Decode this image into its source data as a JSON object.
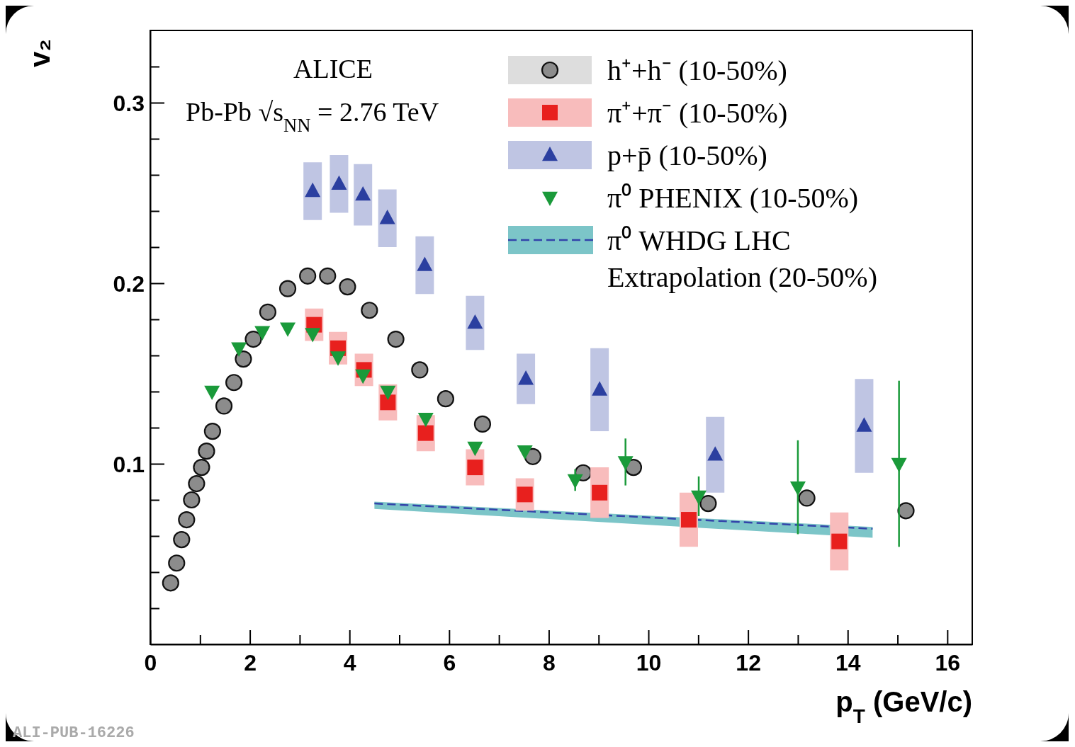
{
  "chart_data": {
    "type": "scatter",
    "xlabel": "p$_{T}$ (GeV/c)",
    "ylabel": "v₂",
    "xlim": [
      0,
      16.5
    ],
    "ylim": [
      0,
      0.34
    ],
    "xticks": [
      0,
      {
        "value": 1,
        "label": null
      },
      2,
      {
        "value": 3,
        "label": null
      },
      4,
      {
        "value": 5,
        "label": null
      },
      6,
      {
        "value": 7,
        "label": null
      },
      8,
      {
        "value": 9,
        "label": null
      },
      10,
      {
        "value": 11,
        "label": null
      },
      12,
      {
        "value": 13,
        "label": null
      },
      14,
      {
        "value": 15,
        "label": null
      },
      16
    ],
    "yticks": [
      {
        "value": 0.02,
        "label": null
      },
      {
        "value": 0.04,
        "label": null
      },
      {
        "value": 0.06,
        "label": null
      },
      {
        "value": 0.08,
        "label": null
      },
      {
        "value": 0.1,
        "label": "0.1"
      },
      {
        "value": 0.12,
        "label": null
      },
      {
        "value": 0.14,
        "label": null
      },
      {
        "value": 0.16,
        "label": null
      },
      {
        "value": 0.18,
        "label": null
      },
      {
        "value": 0.2,
        "label": "0.2"
      },
      {
        "value": 0.22,
        "label": null
      },
      {
        "value": 0.24,
        "label": null
      },
      {
        "value": 0.26,
        "label": null
      },
      {
        "value": 0.28,
        "label": null
      },
      {
        "value": 0.3,
        "label": "0.3"
      },
      {
        "value": 0.32,
        "label": null
      }
    ],
    "legend": "top right",
    "grid": false,
    "annotations": [
      "ALICE",
      "Pb-Pb √s$_{NN}$ = 2.76 TeV",
      "ALI-PUB-16226"
    ],
    "series": [
      {
        "name": "h⁺+h⁻ (10-50%)",
        "type": "scatter",
        "marker": "circle",
        "color": "#8c8c8c",
        "x": [
          0.41,
          0.53,
          0.63,
          0.73,
          0.83,
          0.93,
          1.03,
          1.13,
          1.25,
          1.48,
          1.68,
          1.87,
          2.07,
          2.36,
          2.76,
          3.16,
          3.56,
          3.96,
          4.4,
          4.93,
          5.41,
          5.93,
          6.67,
          7.68,
          8.69,
          9.7,
          11.2,
          13.18,
          15.17
        ],
        "values": [
          0.034,
          0.045,
          0.058,
          0.069,
          0.08,
          0.089,
          0.098,
          0.107,
          0.118,
          0.132,
          0.145,
          0.158,
          0.169,
          0.184,
          0.197,
          0.204,
          0.204,
          0.198,
          0.185,
          0.169,
          0.152,
          0.136,
          0.122,
          0.104,
          0.095,
          0.098,
          0.078,
          0.081,
          0.074
        ]
      },
      {
        "name": "π⁺+π⁻ (10-50%)",
        "type": "scatter",
        "marker": "square",
        "color": "#e8201e",
        "x": [
          3.29,
          3.77,
          4.29,
          4.77,
          5.53,
          6.52,
          7.52,
          9.02,
          10.81,
          13.83
        ],
        "values": [
          0.177,
          0.164,
          0.152,
          0.134,
          0.117,
          0.098,
          0.083,
          0.084,
          0.069,
          0.057
        ],
        "errors": [
          0.009,
          0.009,
          0.009,
          0.01,
          0.01,
          0.01,
          0.009,
          0.014,
          0.015,
          0.016
        ]
      },
      {
        "name": "p+p̄ (10-50%)",
        "type": "scatter",
        "marker": "triangle",
        "color": "#2b3fa0",
        "x": [
          3.26,
          3.79,
          4.27,
          4.76,
          5.51,
          6.52,
          7.54,
          9.02,
          11.34,
          14.33
        ],
        "values": [
          0.251,
          0.255,
          0.249,
          0.236,
          0.21,
          0.178,
          0.147,
          0.141,
          0.105,
          0.121
        ],
        "errors": [
          0.016,
          0.016,
          0.017,
          0.016,
          0.016,
          0.015,
          0.014,
          0.023,
          0.021,
          0.026
        ]
      },
      {
        "name": "π⁰ PHENIX (10-50%)",
        "type": "scatter",
        "marker": "triangle-down",
        "color": "#1a9a3a",
        "x": [
          1.24,
          1.78,
          2.25,
          2.76,
          3.26,
          3.77,
          4.27,
          4.77,
          5.53,
          6.52,
          7.52,
          8.53,
          9.54,
          11.01,
          13.0,
          15.03
        ],
        "values": [
          0.14,
          0.164,
          0.173,
          0.175,
          0.172,
          0.159,
          0.149,
          0.14,
          0.125,
          0.109,
          0.107,
          0.091,
          0.101,
          0.082,
          0.087,
          0.1
        ],
        "errors": [
          null,
          null,
          null,
          null,
          null,
          null,
          null,
          null,
          null,
          null,
          null,
          0.006,
          0.013,
          0.011,
          0.026,
          0.046
        ]
      },
      {
        "name": "π⁰ WHDG LHC Extrapolation (20-50%)",
        "type": "line",
        "line_style": "dashed",
        "color": "#3344aa",
        "x": [
          4.5,
          14.5
        ],
        "values": [
          0.078,
          0.064
        ],
        "lower": [
          0.075,
          0.059
        ],
        "upper": [
          0.079,
          0.065
        ]
      }
    ]
  }
}
